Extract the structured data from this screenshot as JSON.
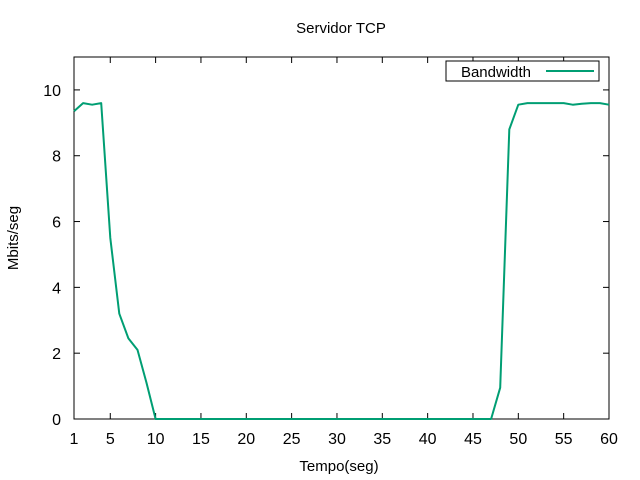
{
  "chart_data": {
    "type": "line",
    "title": "Servidor TCP",
    "xlabel": "Tempo(seg)",
    "ylabel": "Mbits/seg",
    "xlim": [
      1,
      60
    ],
    "ylim": [
      0,
      11
    ],
    "x_ticks": [
      1,
      5,
      10,
      15,
      20,
      25,
      30,
      35,
      40,
      45,
      50,
      55,
      60
    ],
    "y_ticks": [
      0,
      2,
      4,
      6,
      8,
      10
    ],
    "grid": false,
    "legend": {
      "position": "top-right"
    },
    "series": [
      {
        "name": "Bandwidth",
        "color": "#009e73",
        "x": [
          1,
          2,
          3,
          4,
          5,
          6,
          7,
          8,
          9,
          10,
          11,
          12,
          13,
          14,
          15,
          16,
          17,
          18,
          19,
          20,
          21,
          22,
          23,
          24,
          25,
          26,
          27,
          28,
          29,
          30,
          31,
          32,
          33,
          34,
          35,
          36,
          37,
          38,
          39,
          40,
          41,
          42,
          43,
          44,
          45,
          46,
          47,
          48,
          49,
          50,
          51,
          52,
          53,
          54,
          55,
          56,
          57,
          58,
          59,
          60
        ],
        "y": [
          9.35,
          9.6,
          9.55,
          9.6,
          5.5,
          3.2,
          2.45,
          2.1,
          1.1,
          0,
          0,
          0,
          0,
          0,
          0,
          0,
          0,
          0,
          0,
          0,
          0,
          0,
          0,
          0,
          0,
          0,
          0,
          0,
          0,
          0,
          0,
          0,
          0,
          0,
          0,
          0,
          0,
          0,
          0,
          0,
          0,
          0,
          0,
          0,
          0,
          0,
          0,
          0.95,
          8.8,
          9.55,
          9.6,
          9.6,
          9.6,
          9.6,
          9.6,
          9.55,
          9.58,
          9.6,
          9.6,
          9.55
        ]
      }
    ]
  }
}
